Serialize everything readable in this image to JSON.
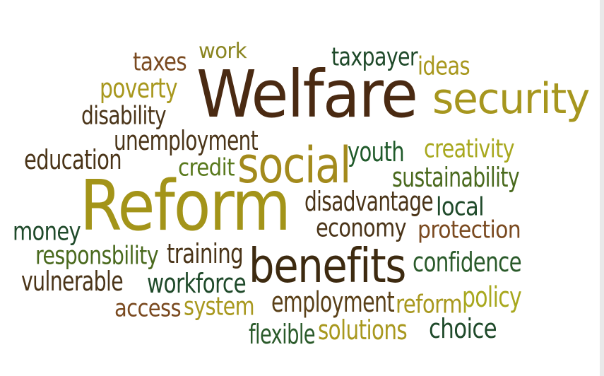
{
  "words": [
    {
      "key": "welfare",
      "text": "Welfare",
      "color": "#4a2a12"
    },
    {
      "key": "reform",
      "text": "Reform",
      "color": "#a39419"
    },
    {
      "key": "benefits",
      "text": "benefits",
      "color": "#3d2a10"
    },
    {
      "key": "social",
      "text": "social",
      "color": "#a38a1c"
    },
    {
      "key": "security",
      "text": "security",
      "color": "#a6961e"
    },
    {
      "key": "taxes",
      "text": "taxes",
      "color": "#7a4a20"
    },
    {
      "key": "work",
      "text": "work",
      "color": "#8a8520"
    },
    {
      "key": "taxpayer",
      "text": "taxpayer",
      "color": "#1f4a2a"
    },
    {
      "key": "ideas",
      "text": "ideas",
      "color": "#a8981e"
    },
    {
      "key": "poverty",
      "text": "poverty",
      "color": "#a8981e"
    },
    {
      "key": "disability",
      "text": "disability",
      "color": "#4a3418"
    },
    {
      "key": "unemployment",
      "text": "unemployment",
      "color": "#4a3418"
    },
    {
      "key": "education",
      "text": "education",
      "color": "#4a3418"
    },
    {
      "key": "credit",
      "text": "credit",
      "color": "#5a7a1e"
    },
    {
      "key": "youth",
      "text": "youth",
      "color": "#1f5a2a"
    },
    {
      "key": "creativity",
      "text": "creativity",
      "color": "#a8a81e"
    },
    {
      "key": "sustainability",
      "text": "sustainability",
      "color": "#4a6a1e"
    },
    {
      "key": "disadvantage",
      "text": "disadvantage",
      "color": "#4a3418"
    },
    {
      "key": "local",
      "text": "local",
      "color": "#1f4a2a"
    },
    {
      "key": "money",
      "text": "money",
      "color": "#1f4a2a"
    },
    {
      "key": "economy",
      "text": "economy",
      "color": "#4a3418"
    },
    {
      "key": "protection",
      "text": "protection",
      "color": "#7a4a20"
    },
    {
      "key": "responsbility",
      "text": "responsbility",
      "color": "#4a6a1e"
    },
    {
      "key": "training",
      "text": "training",
      "color": "#4a3418"
    },
    {
      "key": "confidence",
      "text": "confidence",
      "color": "#2a5a2a"
    },
    {
      "key": "vulnerable",
      "text": "vulnerable",
      "color": "#4a3418"
    },
    {
      "key": "workforce",
      "text": "workforce",
      "color": "#1f4a2a"
    },
    {
      "key": "access",
      "text": "access",
      "color": "#7a4a20"
    },
    {
      "key": "system",
      "text": "system",
      "color": "#a8981e"
    },
    {
      "key": "employment",
      "text": "employment",
      "color": "#5a4018"
    },
    {
      "key": "reform_small",
      "text": "reform",
      "color": "#a8981e"
    },
    {
      "key": "policy",
      "text": "policy",
      "color": "#a8a81e"
    },
    {
      "key": "flexible",
      "text": "flexible",
      "color": "#2a5a2a"
    },
    {
      "key": "solutions",
      "text": "solutions",
      "color": "#a8981e"
    },
    {
      "key": "choice",
      "text": "choice",
      "color": "#1f4a2a"
    }
  ]
}
